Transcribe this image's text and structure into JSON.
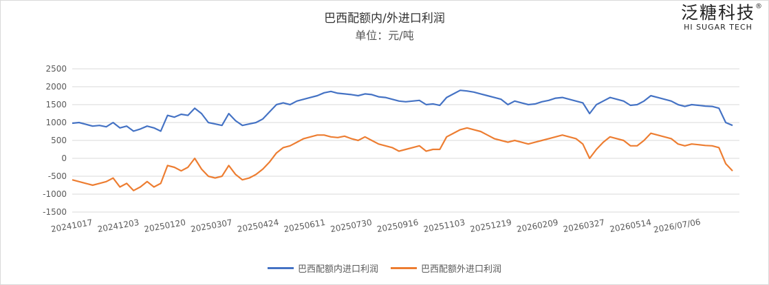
{
  "header": {
    "title": "巴西配额内/外进口利润",
    "subtitle": "单位：元/吨"
  },
  "logo": {
    "main": "泛糖科技",
    "sub": "HI SUGAR TECH",
    "reg": "®"
  },
  "chart_data": {
    "type": "line",
    "title": "巴西配额内/外进口利润",
    "subtitle": "单位：元/吨",
    "xlabel": "",
    "ylabel": "",
    "ylim": [
      -1500,
      2500
    ],
    "yticks": [
      -1500,
      -1000,
      -500,
      0,
      500,
      1000,
      1500,
      2000,
      2500
    ],
    "grid": true,
    "legend_position": "bottom",
    "x_tick_labels": [
      "20241017",
      "20241203",
      "20250120",
      "20250307",
      "20250424",
      "20250611",
      "20250730",
      "20250916",
      "20251103",
      "20251219",
      "20260209",
      "20260327",
      "20260514",
      "2026/07/06"
    ],
    "series": [
      {
        "name": "巴西配额内进口利润",
        "color": "#4472C4",
        "values": [
          980,
          1000,
          950,
          900,
          920,
          880,
          1000,
          850,
          900,
          760,
          820,
          900,
          850,
          760,
          1200,
          1150,
          1230,
          1200,
          1400,
          1250,
          1000,
          960,
          920,
          1250,
          1050,
          920,
          960,
          1000,
          1100,
          1300,
          1500,
          1550,
          1500,
          1600,
          1650,
          1700,
          1750,
          1830,
          1870,
          1820,
          1800,
          1780,
          1750,
          1800,
          1780,
          1720,
          1700,
          1650,
          1600,
          1580,
          1600,
          1620,
          1500,
          1520,
          1480,
          1700,
          1800,
          1900,
          1880,
          1850,
          1800,
          1750,
          1700,
          1650,
          1500,
          1600,
          1550,
          1500,
          1520,
          1580,
          1620,
          1680,
          1700,
          1650,
          1600,
          1550,
          1250,
          1500,
          1600,
          1700,
          1650,
          1600,
          1480,
          1500,
          1600,
          1750,
          1700,
          1650,
          1600,
          1500,
          1450,
          1500,
          1480,
          1460,
          1450,
          1400,
          1000,
          920
        ]
      },
      {
        "name": "巴西配额外进口利润",
        "color": "#ED7D31",
        "values": [
          -600,
          -650,
          -700,
          -750,
          -700,
          -650,
          -550,
          -800,
          -700,
          -900,
          -800,
          -650,
          -800,
          -700,
          -200,
          -250,
          -350,
          -250,
          0,
          -300,
          -500,
          -550,
          -500,
          -200,
          -450,
          -600,
          -550,
          -450,
          -300,
          -100,
          150,
          300,
          350,
          450,
          550,
          600,
          650,
          650,
          600,
          580,
          620,
          550,
          500,
          600,
          500,
          400,
          350,
          300,
          200,
          250,
          300,
          350,
          200,
          250,
          250,
          600,
          700,
          800,
          850,
          800,
          750,
          650,
          550,
          500,
          450,
          500,
          450,
          400,
          450,
          500,
          550,
          600,
          650,
          600,
          550,
          400,
          0,
          250,
          450,
          600,
          550,
          500,
          350,
          350,
          500,
          700,
          650,
          600,
          550,
          400,
          350,
          400,
          380,
          360,
          350,
          300,
          -150,
          -350
        ]
      }
    ]
  }
}
